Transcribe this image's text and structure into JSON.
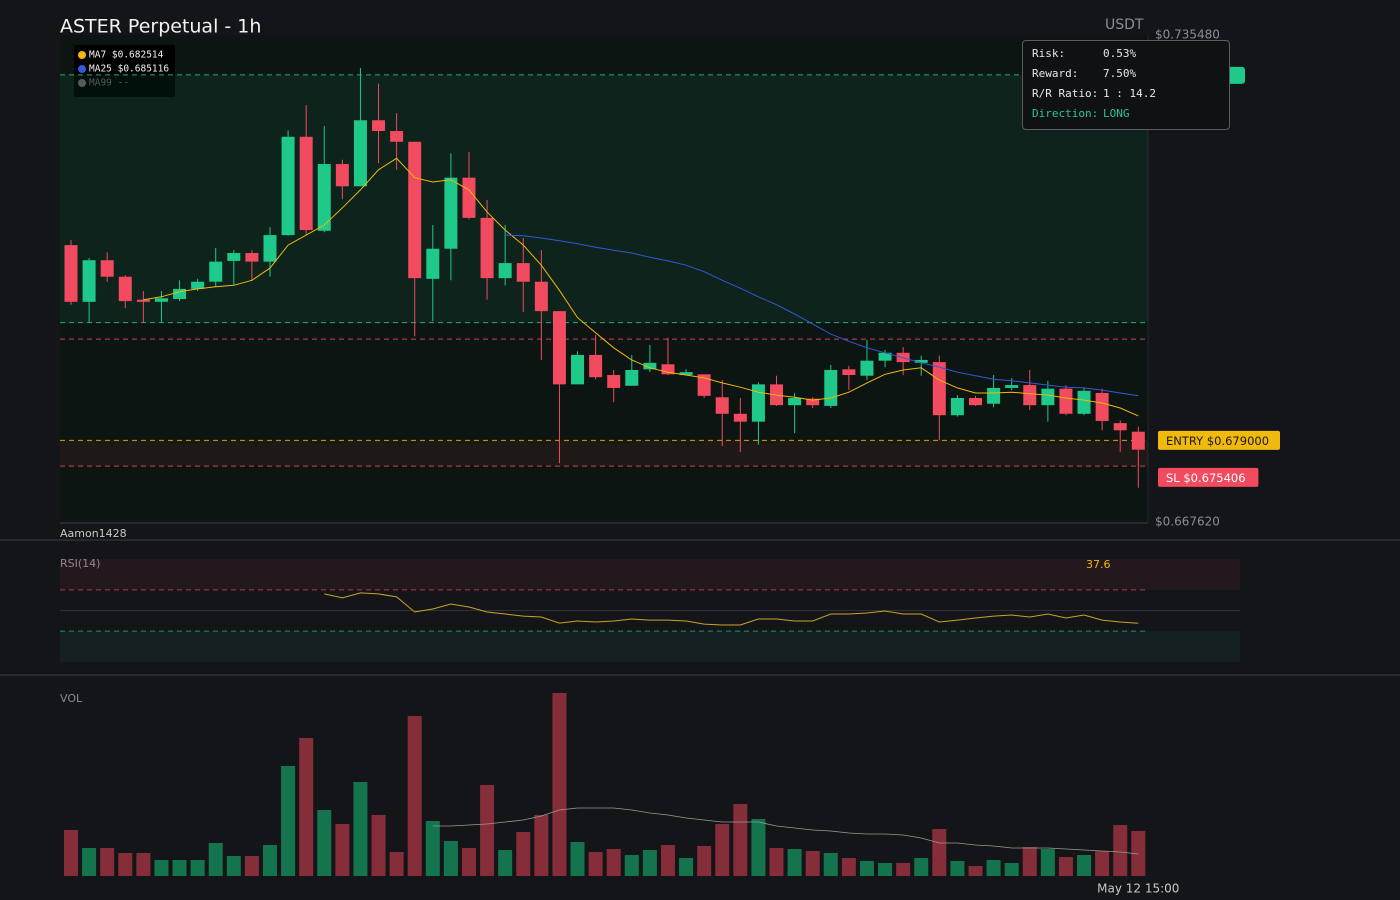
{
  "header": {
    "title": "ASTER Perpetual - 1h",
    "currency": "USDT",
    "watermark": "Aamon1428"
  },
  "risk_panel": {
    "rows": [
      [
        "Risk:",
        "0.53%"
      ],
      [
        "Reward:",
        "7.50%"
      ],
      [
        "R/R Ratio:",
        "1 : 14.2"
      ],
      [
        "Direction:",
        "LONG"
      ]
    ]
  },
  "chart_data": [
    {
      "type": "candlestick",
      "categories": [
        null,
        null,
        null,
        null,
        null,
        null,
        null,
        null,
        null,
        null,
        null,
        null,
        null,
        null,
        null,
        null,
        null,
        null,
        null,
        null,
        null,
        null,
        null,
        null,
        null,
        null,
        null,
        null,
        null,
        null,
        null,
        null,
        null,
        null,
        null,
        null,
        null,
        null,
        null,
        null,
        null,
        null,
        null,
        null,
        null,
        null,
        null,
        null,
        null,
        null,
        null,
        null,
        null,
        null,
        null,
        null,
        null,
        null,
        null,
        "May 12 15:00"
      ],
      "ylim": [
        0.66762,
        0.73548
      ],
      "yticks": [
        {
          "value": 0.73548,
          "label": "$0.735480"
        },
        {
          "value": 0.66762,
          "label": "$0.667620"
        }
      ],
      "up_color": "#1ec98a",
      "down_color": "#f24a5e",
      "open": [
        0.7062,
        0.6983,
        0.7041,
        0.7018,
        0.6986,
        0.6983,
        0.6987,
        0.7001,
        0.7011,
        0.704,
        0.7051,
        0.7039,
        0.7076,
        0.7213,
        0.7082,
        0.7175,
        0.7144,
        0.7236,
        0.7221,
        0.7206,
        0.7015,
        0.7057,
        0.7156,
        0.71,
        0.7016,
        0.7037,
        0.7011,
        0.697,
        0.6868,
        0.6909,
        0.6881,
        0.6866,
        0.6889,
        0.6896,
        0.6881,
        0.6882,
        0.685,
        0.6827,
        0.6816,
        0.6868,
        0.6839,
        0.6848,
        0.6838,
        0.6889,
        0.688,
        0.6901,
        0.6912,
        0.6898,
        0.6899,
        0.6825,
        0.6849,
        0.6841,
        0.6863,
        0.6867,
        0.6839,
        0.6862,
        0.6827,
        0.6856,
        0.6814,
        0.6802
      ],
      "high": [
        0.7069,
        0.7044,
        0.7052,
        0.702,
        0.6998,
        0.6998,
        0.7013,
        0.7015,
        0.7058,
        0.7055,
        0.7055,
        0.7087,
        0.7222,
        0.7257,
        0.7228,
        0.7181,
        0.7309,
        0.7287,
        0.7246,
        0.7206,
        0.709,
        0.719,
        0.7192,
        0.7125,
        0.709,
        0.7072,
        0.7055,
        0.697,
        0.6914,
        0.6937,
        0.6888,
        0.6909,
        0.6923,
        0.6933,
        0.6889,
        0.6882,
        0.6874,
        0.6849,
        0.6871,
        0.688,
        0.6856,
        0.685,
        0.6895,
        0.6894,
        0.693,
        0.6916,
        0.692,
        0.6908,
        0.6908,
        0.6853,
        0.6852,
        0.6881,
        0.6877,
        0.6888,
        0.6873,
        0.6867,
        0.6863,
        0.6862,
        0.6818,
        0.6809
      ],
      "low": [
        0.6979,
        0.6954,
        0.7011,
        0.6974,
        0.6954,
        0.6954,
        0.6984,
        0.6998,
        0.7004,
        0.7006,
        0.7012,
        0.7018,
        0.7075,
        0.7076,
        0.708,
        0.7126,
        0.7144,
        0.7176,
        0.7167,
        0.6935,
        0.6956,
        0.7013,
        0.7098,
        0.6986,
        0.7006,
        0.6969,
        0.6902,
        0.6758,
        0.6868,
        0.6875,
        0.6843,
        0.6866,
        0.6885,
        0.6881,
        0.688,
        0.6849,
        0.6782,
        0.6774,
        0.6784,
        0.6838,
        0.68,
        0.6835,
        0.6835,
        0.686,
        0.6874,
        0.6892,
        0.6881,
        0.688,
        0.679,
        0.6823,
        0.6838,
        0.6836,
        0.686,
        0.6832,
        0.6816,
        0.6825,
        0.6825,
        0.6804,
        0.6774,
        0.6724
      ],
      "close": [
        0.6983,
        0.7041,
        0.7018,
        0.6984,
        0.6983,
        0.6988,
        0.7001,
        0.7011,
        0.7039,
        0.7051,
        0.7039,
        0.7076,
        0.7213,
        0.7083,
        0.7175,
        0.7144,
        0.7236,
        0.7221,
        0.7206,
        0.7016,
        0.7057,
        0.7156,
        0.71,
        0.7016,
        0.7037,
        0.7011,
        0.697,
        0.6868,
        0.6909,
        0.6878,
        0.6863,
        0.6888,
        0.6898,
        0.6882,
        0.6885,
        0.6852,
        0.6827,
        0.6816,
        0.6868,
        0.6839,
        0.6849,
        0.6839,
        0.6888,
        0.6881,
        0.6901,
        0.6912,
        0.6899,
        0.6902,
        0.6825,
        0.6849,
        0.6839,
        0.6863,
        0.6867,
        0.6839,
        0.6862,
        0.6827,
        0.6859,
        0.6817,
        0.6804,
        0.6777
      ],
      "series": [
        {
          "name": "MA7 $0.682514",
          "color": "#f0b90b",
          "values": [
            null,
            null,
            null,
            null,
            0.6986,
            0.699,
            0.6997,
            0.7001,
            0.7004,
            0.7006,
            0.7013,
            0.703,
            0.7062,
            0.7076,
            0.709,
            0.7114,
            0.7139,
            0.7167,
            0.7183,
            0.7156,
            0.715,
            0.7153,
            0.7139,
            0.7108,
            0.7083,
            0.7062,
            0.7034,
            0.6999,
            0.6961,
            0.694,
            0.6919,
            0.6902,
            0.6891,
            0.6885,
            0.6881,
            0.6877,
            0.687,
            0.6864,
            0.6857,
            0.6853,
            0.685,
            0.6846,
            0.6849,
            0.6857,
            0.687,
            0.6882,
            0.6888,
            0.6891,
            0.6874,
            0.6863,
            0.6856,
            0.6856,
            0.6857,
            0.6855,
            0.6853,
            0.6849,
            0.6846,
            0.6842,
            0.6835,
            0.6824
          ]
        },
        {
          "name": "MA25 $0.685116",
          "color": "#2f5ad8",
          "values": [
            null,
            null,
            null,
            null,
            null,
            null,
            null,
            null,
            null,
            null,
            null,
            null,
            null,
            null,
            null,
            null,
            null,
            null,
            null,
            null,
            null,
            null,
            null,
            null,
            0.7076,
            0.7075,
            0.7072,
            0.7068,
            0.7064,
            0.7059,
            0.7055,
            0.7051,
            0.7045,
            0.704,
            0.7034,
            0.7025,
            0.7013,
            0.7002,
            0.699,
            0.6979,
            0.6966,
            0.6952,
            0.6938,
            0.6928,
            0.6919,
            0.6912,
            0.6905,
            0.6898,
            0.6892,
            0.6885,
            0.688,
            0.6875,
            0.6873,
            0.687,
            0.6867,
            0.6864,
            0.6863,
            0.686,
            0.6856,
            0.6852
          ]
        },
        {
          "name": "MA99 --",
          "color": "#555a60",
          "values": [
            null,
            null,
            null,
            null,
            null,
            null,
            null,
            null,
            null,
            null,
            null,
            null,
            null,
            null,
            null,
            null,
            null,
            null,
            null,
            null,
            null,
            null,
            null,
            null,
            null,
            null,
            null,
            null,
            null,
            null,
            null,
            null,
            null,
            null,
            null,
            null,
            null,
            null,
            null,
            null,
            null,
            null,
            null,
            null,
            null,
            null,
            null,
            null,
            null,
            null,
            null,
            null,
            null,
            null,
            null,
            null,
            null,
            null,
            null,
            null
          ]
        }
      ],
      "levels": [
        {
          "value": 0.729925,
          "color": "#1ec98a"
        },
        {
          "value": 0.6954,
          "color": "#1ec98a"
        },
        {
          "value": 0.6931,
          "color": "#f24a5e"
        },
        {
          "value": 0.679,
          "color": "#f0b90b",
          "label": "ENTRY $0.679000"
        },
        {
          "value": 0.675406,
          "color": "#f24a5e",
          "label": "SL $0.675406"
        }
      ]
    },
    {
      "type": "line",
      "title": "RSI(14)",
      "ylim": [
        0,
        100
      ],
      "yticks": [
        30,
        50,
        70
      ],
      "color": "#c9a227",
      "values": [
        null,
        null,
        null,
        null,
        null,
        null,
        null,
        null,
        null,
        null,
        null,
        null,
        null,
        null,
        66.1,
        62.2,
        67.1,
        66.1,
        63.2,
        48.5,
        51.5,
        56.3,
        53.4,
        48.5,
        46.6,
        44.6,
        43.7,
        37.8,
        39.8,
        38.8,
        39.8,
        41.7,
        40.7,
        40.7,
        39.8,
        36.8,
        35.9,
        35.9,
        41.7,
        41.7,
        39.8,
        39.8,
        46.6,
        46.6,
        47.6,
        49.5,
        46.6,
        46.6,
        38.8,
        40.7,
        42.7,
        44.6,
        45.6,
        43.7,
        46.6,
        42.7,
        45.6,
        40.7,
        38.8,
        37.6
      ]
    },
    {
      "type": "bar",
      "title": "VOL",
      "ylim": [
        0,
        190
      ],
      "ma_color": "#9a9a9a",
      "values": [
        46,
        28,
        28,
        23,
        23,
        16,
        16,
        16,
        33,
        20,
        20,
        31,
        110,
        138,
        66,
        52,
        94,
        61,
        24,
        160,
        55,
        35,
        28,
        91,
        26,
        44,
        61,
        183,
        34,
        24,
        27,
        21,
        26,
        31,
        18,
        30,
        52,
        72,
        57,
        28,
        27,
        25,
        23,
        18,
        15,
        13,
        13,
        18,
        47,
        15,
        10,
        16,
        13,
        29,
        27,
        19,
        21,
        25,
        51,
        45
      ],
      "ma": [
        null,
        null,
        null,
        null,
        null,
        null,
        null,
        null,
        null,
        null,
        null,
        null,
        null,
        null,
        null,
        null,
        null,
        null,
        null,
        null,
        50,
        50,
        51,
        52,
        54,
        56,
        60,
        66,
        68,
        68,
        68,
        66,
        63,
        61,
        58,
        56,
        54,
        54,
        54,
        50,
        48,
        46,
        45,
        43,
        42,
        42,
        41,
        38,
        33,
        33,
        31,
        30,
        28,
        28,
        28,
        27,
        26,
        25,
        24,
        22
      ]
    }
  ]
}
